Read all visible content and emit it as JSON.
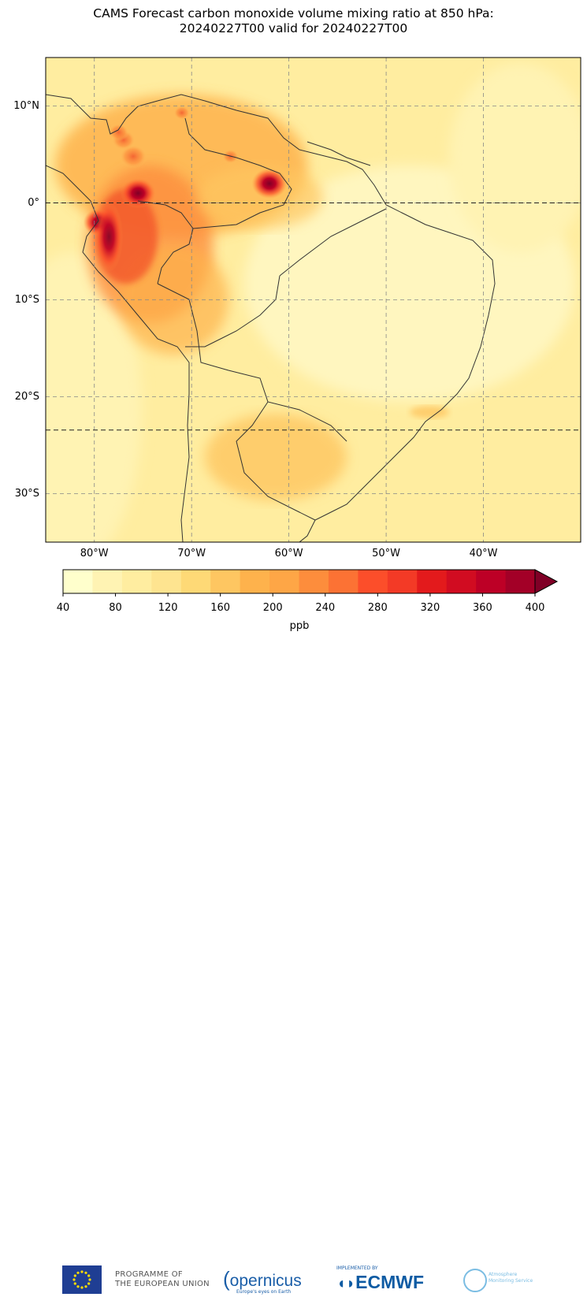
{
  "title_line1": "CAMS Forecast carbon monoxide volume mixing ratio at 850 hPa:",
  "title_line2": "20240227T00 valid for 20240227T00",
  "map": {
    "lon_range": [
      -85,
      -30
    ],
    "lat_range": [
      -35,
      15
    ],
    "lat_ticks": [
      {
        "value": 10,
        "label": "10°N"
      },
      {
        "value": 0,
        "label": "0°"
      },
      {
        "value": -10,
        "label": "10°S"
      },
      {
        "value": -20,
        "label": "20°S"
      },
      {
        "value": -30,
        "label": "30°S"
      }
    ],
    "lon_ticks": [
      {
        "value": -80,
        "label": "80°W"
      },
      {
        "value": -70,
        "label": "70°W"
      },
      {
        "value": -60,
        "label": "60°W"
      },
      {
        "value": -50,
        "label": "50°W"
      },
      {
        "value": -40,
        "label": "40°W"
      }
    ],
    "grid": true,
    "highlighted_parallels": [
      0,
      -23.44
    ],
    "hotspots_lonlat": [
      {
        "lon": -75.5,
        "lat": 1.0,
        "level": 400
      },
      {
        "lon": -62.0,
        "lat": 2.0,
        "level": 400
      },
      {
        "lon": -79.5,
        "lat": -2.0,
        "level": 380
      },
      {
        "lon": -76.0,
        "lat": 4.8,
        "level": 360
      },
      {
        "lon": -77.0,
        "lat": 6.5,
        "level": 340
      },
      {
        "lon": -77.5,
        "lat": 7.3,
        "level": 320
      },
      {
        "lon": -66.0,
        "lat": 4.8,
        "level": 300
      },
      {
        "lon": -71.0,
        "lat": 9.3,
        "level": 300
      }
    ]
  },
  "colorbar": {
    "label": "ppb",
    "ticks": [
      "40",
      "80",
      "120",
      "160",
      "200",
      "240",
      "280",
      "320",
      "360",
      "400"
    ],
    "range": [
      40,
      400
    ],
    "extend": "max",
    "colors": [
      "#ffffcc",
      "#fff3b3",
      "#ffeda0",
      "#fee490",
      "#fed976",
      "#fec661",
      "#feb24c",
      "#fea646",
      "#fd8d3c",
      "#fc7234",
      "#fc4e2a",
      "#f33a26",
      "#e31a1c",
      "#d10c21",
      "#bd0026",
      "#a30027",
      "#800026"
    ]
  },
  "footer": {
    "eu_programme_line1": "PROGRAMME OF",
    "eu_programme_line2": "THE EUROPEAN UNION",
    "copernicus": "opernicus",
    "copernicus_sub": "Europe's eyes on Earth",
    "ecmwf_small": "IMPLEMENTED BY",
    "ecmwf": "ECMWF",
    "cams_line1": "Atmosphere",
    "cams_line2": "Monitoring Service"
  }
}
